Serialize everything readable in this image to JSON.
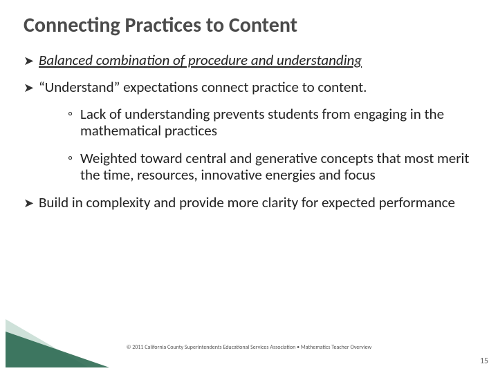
{
  "title": "Connecting Practices to Content",
  "bullets": {
    "b1": "Balanced combination of procedure and understanding",
    "b2": "“Understand” expectations connect practice to content.",
    "b2a": "Lack of understanding prevents students from engaging in the mathematical practices",
    "b2b": "Weighted toward central and generative concepts that most merit the time, resources, innovative energies and focus",
    "b3": "Build in complexity and provide more clarity for expected performance"
  },
  "copyright": "© 2011 California County Superintendents Educational Services Association • Mathematics Teacher Overview",
  "page_number": "15",
  "colors": {
    "title_color": "#4b4b4b",
    "body_text_color": "#222222",
    "triangle_dark": "#2e6a52",
    "triangle_light": "#a5c8ba",
    "background": "#ffffff"
  },
  "fonts": {
    "title_size_pt": 30,
    "body_size_pt": 21,
    "copyright_size_pt": 8,
    "pagenum_size_pt": 12
  }
}
